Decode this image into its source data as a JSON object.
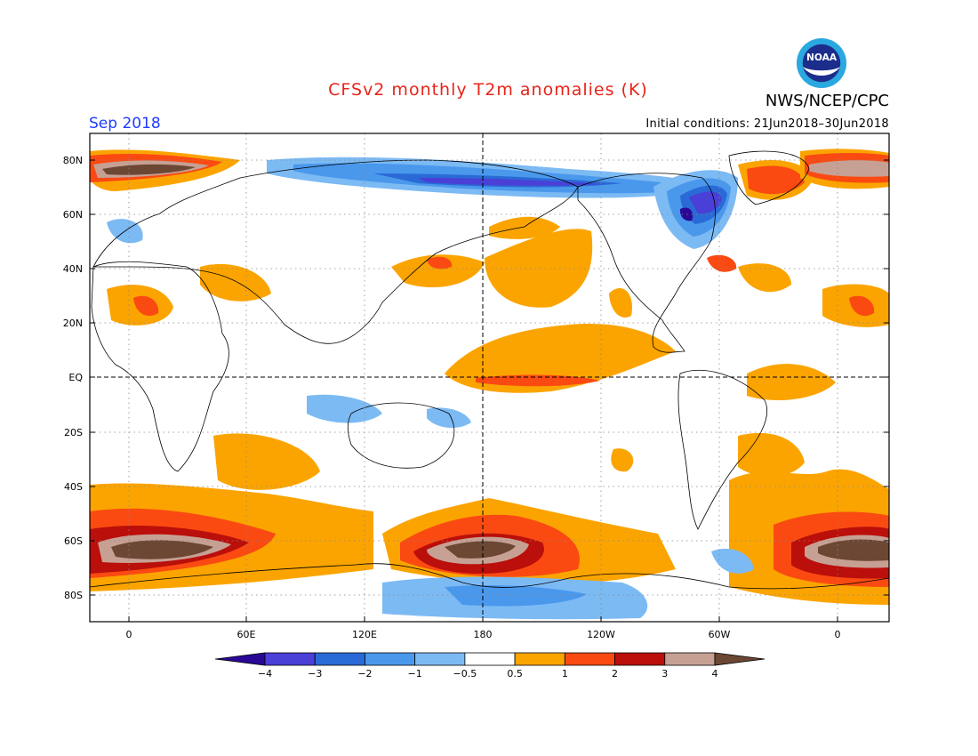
{
  "header": {
    "title": "CFSv2 monthly T2m anomalies (K)",
    "agency": "NWS/NCEP/CPC",
    "logo_text": "NOAA",
    "month": "Sep 2018",
    "initial_conditions": "Initial conditions: 21Jun2018–30Jun2018"
  },
  "map": {
    "projection": "cylindrical",
    "lon_range_deg_east": [
      -20,
      380
    ],
    "lat_range": [
      -90,
      90
    ],
    "lat_ticks": [
      "80N",
      "60N",
      "40N",
      "20N",
      "EQ",
      "20S",
      "40S",
      "60S",
      "80S"
    ],
    "lon_ticks": [
      "0",
      "60E",
      "120E",
      "180",
      "120W",
      "60W",
      "0"
    ],
    "grid": "dotted",
    "reference_lines": [
      "EQ",
      "180"
    ]
  },
  "legend": {
    "units": "K",
    "levels": [
      "-4",
      "-3",
      "-2",
      "-1",
      "-0.5",
      "0.5",
      "1",
      "2",
      "3",
      "4"
    ],
    "colors": [
      "#2a0896",
      "#4a3fd6",
      "#2a6ad6",
      "#4a98ec",
      "#7cbaf4",
      "#ffffff",
      "#fba400",
      "#fa4a12",
      "#ba0f0a",
      "#c7a094",
      "#6b4734"
    ]
  },
  "anomaly_regions": [
    {
      "name": "Arctic Siberian coast",
      "category": "-2"
    },
    {
      "name": "Greenland / Baffin",
      "category": "-3"
    },
    {
      "name": "Scandinavia / Barents",
      "category": "4"
    },
    {
      "name": "Southern Ocean 0-60E",
      "category": "4"
    },
    {
      "name": "Southern Ocean 180",
      "category": "4"
    },
    {
      "name": "Southern Ocean 60W",
      "category": "4"
    },
    {
      "name": "Equatorial Pacific",
      "category": "1"
    },
    {
      "name": "North Pacific",
      "category": "0.5"
    },
    {
      "name": "Antarctic coast 180",
      "category": "-1"
    }
  ]
}
